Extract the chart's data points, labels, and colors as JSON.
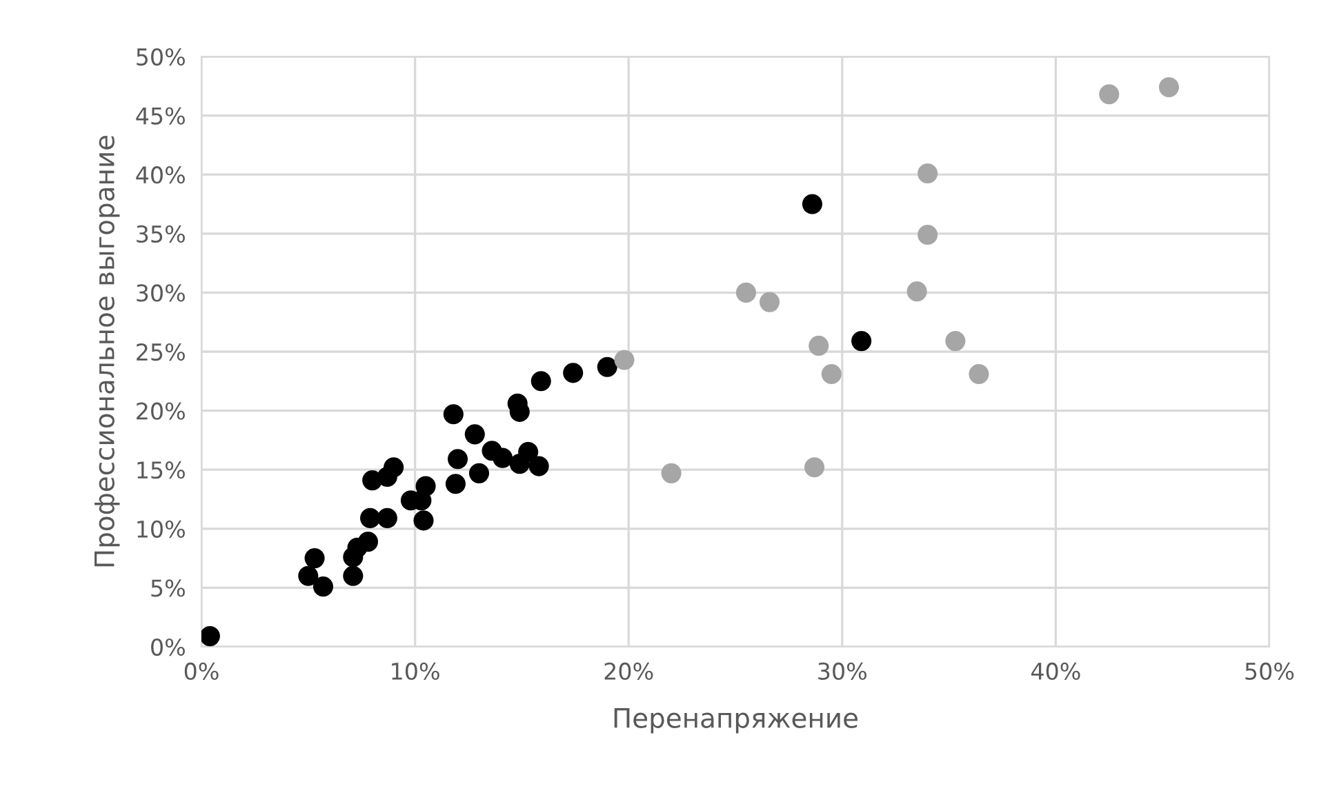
{
  "chart_data": {
    "type": "scatter",
    "xlabel": "Перенапряжение",
    "ylabel": "Профессиональное выгорание",
    "xlim": [
      0,
      50
    ],
    "ylim": [
      0,
      50
    ],
    "xticks": [
      {
        "value": 0,
        "label": "0%"
      },
      {
        "value": 10,
        "label": "10%"
      },
      {
        "value": 20,
        "label": "20%"
      },
      {
        "value": 30,
        "label": "30%"
      },
      {
        "value": 40,
        "label": "40%"
      },
      {
        "value": 50,
        "label": "50%"
      }
    ],
    "yticks": [
      {
        "value": 0,
        "label": "0%"
      },
      {
        "value": 5,
        "label": "5%"
      },
      {
        "value": 10,
        "label": "10%"
      },
      {
        "value": 15,
        "label": "15%"
      },
      {
        "value": 20,
        "label": "20%"
      },
      {
        "value": 25,
        "label": "25%"
      },
      {
        "value": 30,
        "label": "30%"
      },
      {
        "value": 35,
        "label": "35%"
      },
      {
        "value": 40,
        "label": "40%"
      },
      {
        "value": 45,
        "label": "45%"
      },
      {
        "value": 50,
        "label": "50%"
      }
    ],
    "grid": true,
    "marker": "circle",
    "series": [
      {
        "color": "#000000",
        "x": [
          0.4,
          5.0,
          5.3,
          5.7,
          7.1,
          7.1,
          7.3,
          7.8,
          7.9,
          8.0,
          8.7,
          8.7,
          9.0,
          9.8,
          10.3,
          10.4,
          10.5,
          11.8,
          11.9,
          12.0,
          12.8,
          13.0,
          13.6,
          14.1,
          14.8,
          14.9,
          14.9,
          15.3,
          15.8,
          15.9,
          17.4,
          19.0,
          28.6,
          30.9
        ],
        "values": [
          0.9,
          6.0,
          7.5,
          5.1,
          6.0,
          7.6,
          8.4,
          8.9,
          10.9,
          14.1,
          10.9,
          14.4,
          15.2,
          12.4,
          12.4,
          10.7,
          13.6,
          19.7,
          13.8,
          15.9,
          18.0,
          14.7,
          16.6,
          16.0,
          20.6,
          19.9,
          15.5,
          16.5,
          15.3,
          22.5,
          23.2,
          23.7,
          37.5,
          25.9
        ]
      },
      {
        "color": "#a6a6a6",
        "x": [
          19.8,
          22.0,
          25.5,
          26.6,
          28.7,
          28.9,
          29.5,
          33.5,
          34.0,
          34.0,
          35.3,
          36.4,
          42.5,
          45.3
        ],
        "values": [
          24.3,
          14.7,
          30.0,
          29.2,
          15.2,
          25.5,
          23.1,
          30.1,
          40.1,
          34.9,
          25.9,
          23.1,
          46.8,
          47.4
        ]
      }
    ]
  }
}
